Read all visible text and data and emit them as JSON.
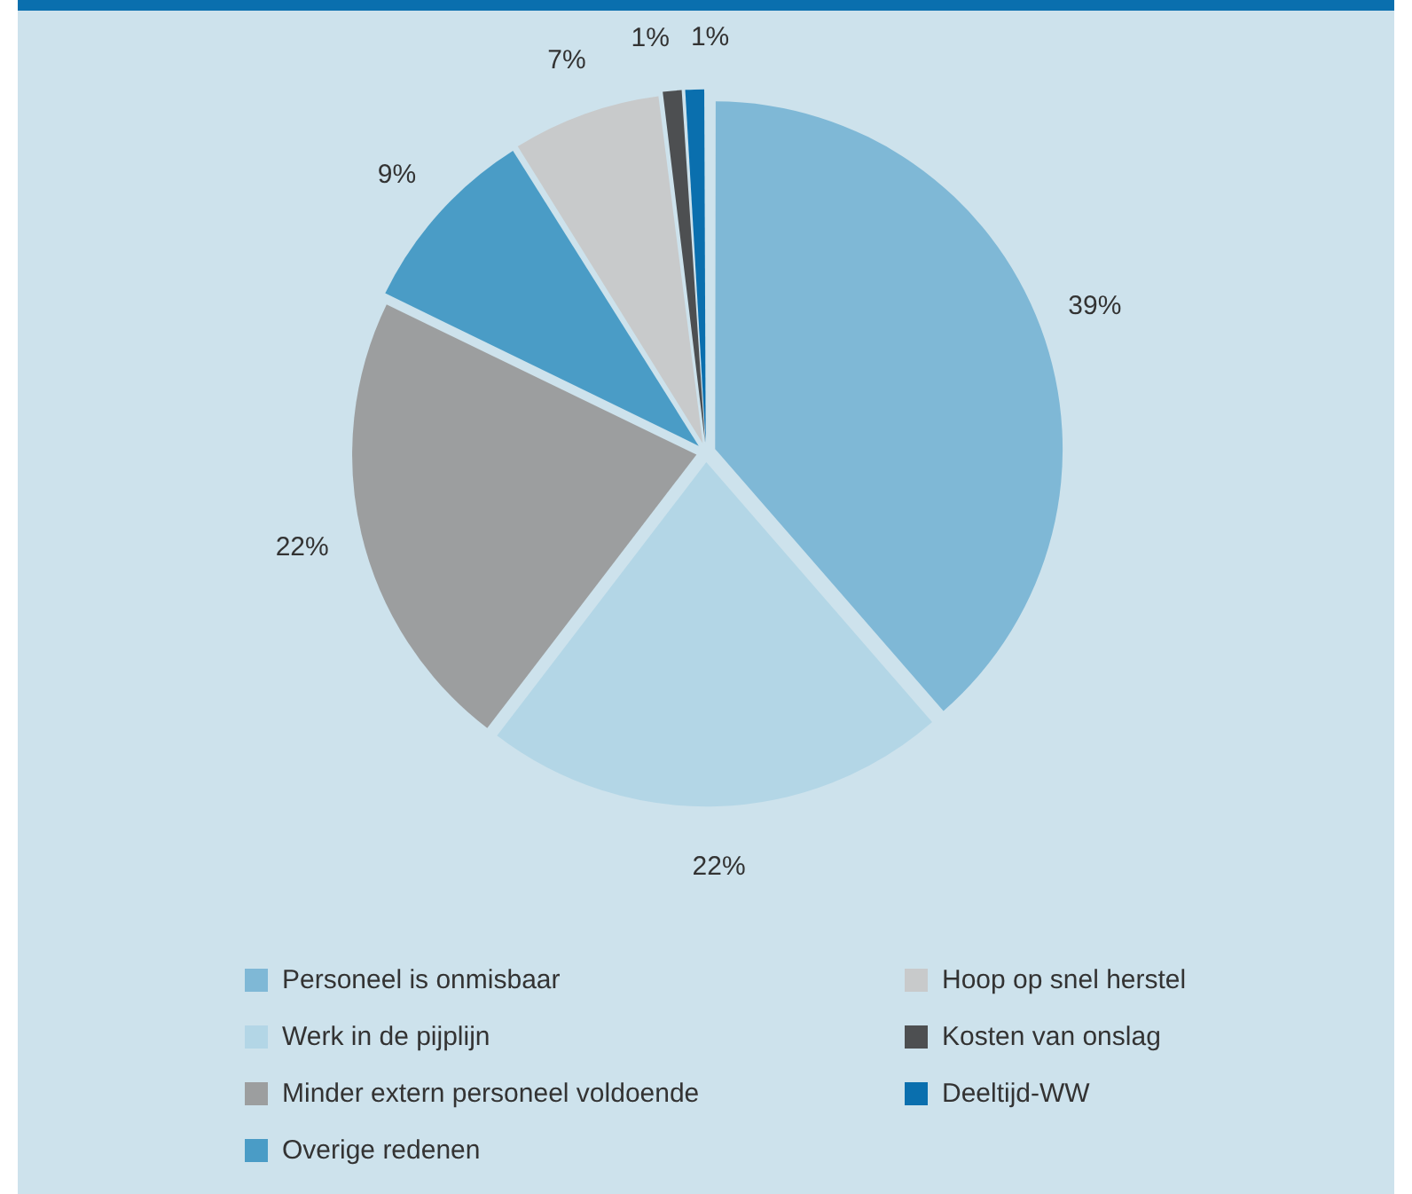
{
  "chart_data": {
    "type": "pie",
    "categories": [
      "Personeel is onmisbaar",
      "Werk in de pijplijn",
      "Minder extern personeel voldoende",
      "Overige redenen",
      "Hoop op snel herstel",
      "Kosten van onslag",
      "Deeltijd-WW"
    ],
    "values": [
      39,
      22,
      22,
      9,
      7,
      1,
      1
    ],
    "value_labels": [
      "39%",
      "22%",
      "22%",
      "9%",
      "7%",
      "1%",
      "1%"
    ],
    "colors": [
      "#7fb8d6",
      "#b3d6e6",
      "#9c9e9f",
      "#4a9cc6",
      "#c8cacb",
      "#4d4f51",
      "#0a6fae"
    ],
    "legend": "bottom"
  }
}
